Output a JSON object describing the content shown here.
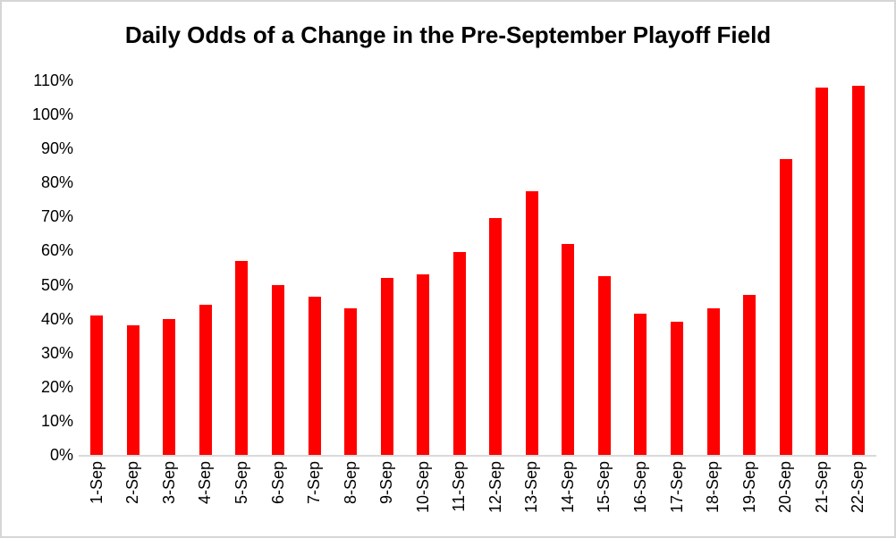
{
  "title": "Daily Odds of a Change in the Pre-September Playoff Field",
  "chart_data": {
    "type": "bar",
    "title": "Daily Odds of a Change in the Pre-September Playoff Field",
    "categories": [
      "1-Sep",
      "2-Sep",
      "3-Sep",
      "4-Sep",
      "5-Sep",
      "6-Sep",
      "7-Sep",
      "8-Sep",
      "9-Sep",
      "10-Sep",
      "11-Sep",
      "12-Sep",
      "13-Sep",
      "14-Sep",
      "15-Sep",
      "16-Sep",
      "17-Sep",
      "18-Sep",
      "19-Sep",
      "20-Sep",
      "21-Sep",
      "22-Sep"
    ],
    "values": [
      41,
      38,
      40,
      44,
      57,
      50,
      46.5,
      43,
      52,
      53,
      59.5,
      69.5,
      77.5,
      62,
      52.5,
      41.5,
      39,
      43,
      47,
      87,
      108,
      108.5
    ],
    "xlabel": "",
    "ylabel": "",
    "ylim": [
      0,
      110
    ],
    "y_tick_values": [
      110,
      100,
      90,
      80,
      70,
      60,
      50,
      40,
      30,
      20,
      10,
      0
    ],
    "y_tick_labels": [
      "110%",
      "100%",
      "90%",
      "80%",
      "70%",
      "60%",
      "50%",
      "40%",
      "30%",
      "20%",
      "10%",
      "0%"
    ],
    "grid": false,
    "legend": false,
    "bar_color": "#ff0000",
    "axis_line_color": "#d9d9d9",
    "text_color": "#000000"
  }
}
